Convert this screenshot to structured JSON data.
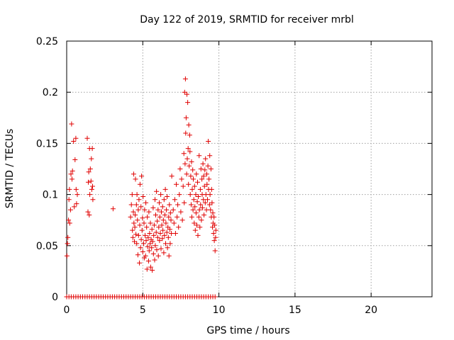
{
  "chart_data": {
    "type": "scatter",
    "title": "Day 122 of 2019, SRMTID for receiver mrbl",
    "xlabel": "GPS time / hours",
    "ylabel": "SRMTID / TECUs",
    "xlim": [
      0,
      24
    ],
    "ylim": [
      0,
      0.25
    ],
    "xticks": [
      "0",
      "5",
      "10",
      "15",
      "20"
    ],
    "xtick_values": [
      0,
      5,
      10,
      15,
      20
    ],
    "yticks": [
      "0",
      "0.05",
      "0.1",
      "0.15",
      "0.2",
      "0.25"
    ],
    "ytick_values": [
      0,
      0.05,
      0.1,
      0.15,
      0.2,
      0.25
    ],
    "grid": true,
    "legend": "none",
    "marker": "+",
    "series": [
      {
        "color": "#e00000",
        "points": [
          [
            0.02,
            0.04
          ],
          [
            0.05,
            0.052
          ],
          [
            0.08,
            0.058
          ],
          [
            0.12,
            0.075
          ],
          [
            0.15,
            0.095
          ],
          [
            0.18,
            0.105
          ],
          [
            0.2,
            0.072
          ],
          [
            0.25,
            0.085
          ],
          [
            0.28,
            0.12
          ],
          [
            0.32,
            0.169
          ],
          [
            0.35,
            0.115
          ],
          [
            0.38,
            0.123
          ],
          [
            0.45,
            0.152
          ],
          [
            0.5,
            0.088
          ],
          [
            0.55,
            0.134
          ],
          [
            0.6,
            0.155
          ],
          [
            0.62,
            0.105
          ],
          [
            0.65,
            0.091
          ],
          [
            0.7,
            0.1
          ],
          [
            1.35,
            0.155
          ],
          [
            1.4,
            0.083
          ],
          [
            1.42,
            0.112
          ],
          [
            1.45,
            0.122
          ],
          [
            1.48,
            0.08
          ],
          [
            1.5,
            0.145
          ],
          [
            1.52,
            0.1
          ],
          [
            1.55,
            0.125
          ],
          [
            1.6,
            0.113
          ],
          [
            1.62,
            0.135
          ],
          [
            1.65,
            0.105
          ],
          [
            1.68,
            0.145
          ],
          [
            1.7,
            0.108
          ],
          [
            1.72,
            0.095
          ],
          [
            3.05,
            0.086
          ],
          [
            4.2,
            0.078
          ],
          [
            4.25,
            0.09
          ],
          [
            4.3,
            0.1
          ],
          [
            4.32,
            0.065
          ],
          [
            4.35,
            0.058
          ],
          [
            4.38,
            0.083
          ],
          [
            4.4,
            0.12
          ],
          [
            4.42,
            0.072
          ],
          [
            4.45,
            0.054
          ],
          [
            4.48,
            0.068
          ],
          [
            4.5,
            0.08
          ],
          [
            4.52,
            0.115
          ],
          [
            4.55,
            0.061
          ],
          [
            4.58,
            0.09
          ],
          [
            4.6,
            0.052
          ],
          [
            4.62,
            0.1
          ],
          [
            4.65,
            0.075
          ],
          [
            4.68,
            0.041
          ],
          [
            4.7,
            0.085
          ],
          [
            4.72,
            0.06
          ],
          [
            4.75,
            0.095
          ],
          [
            4.78,
            0.033
          ],
          [
            4.8,
            0.07
          ],
          [
            4.82,
            0.11
          ],
          [
            4.85,
            0.048
          ],
          [
            4.88,
            0.088
          ],
          [
            4.9,
            0.056
          ],
          [
            4.92,
            0.118
          ],
          [
            4.95,
            0.065
          ],
          [
            4.98,
            0.077
          ],
          [
            5.0,
            0.044
          ],
          [
            5.02,
            0.098
          ],
          [
            5.05,
            0.052
          ],
          [
            5.08,
            0.072
          ],
          [
            5.1,
            0.038
          ],
          [
            5.12,
            0.085
          ],
          [
            5.15,
            0.06
          ],
          [
            5.18,
            0.04
          ],
          [
            5.2,
            0.092
          ],
          [
            5.22,
            0.055
          ],
          [
            5.25,
            0.068
          ],
          [
            5.28,
            0.027
          ],
          [
            5.3,
            0.078
          ],
          [
            5.32,
            0.049
          ],
          [
            5.35,
            0.058
          ],
          [
            5.38,
            0.035
          ],
          [
            5.4,
            0.083
          ],
          [
            5.42,
            0.045
          ],
          [
            5.45,
            0.062
          ],
          [
            5.48,
            0.052
          ],
          [
            5.5,
            0.072
          ],
          [
            5.52,
            0.029
          ],
          [
            5.55,
            0.056
          ],
          [
            5.58,
            0.048
          ],
          [
            5.6,
            0.066
          ],
          [
            5.62,
            0.026
          ],
          [
            5.65,
            0.054
          ],
          [
            5.68,
            0.087
          ],
          [
            5.7,
            0.042
          ],
          [
            5.72,
            0.06
          ],
          [
            5.75,
            0.07
          ],
          [
            5.78,
            0.036
          ],
          [
            5.8,
            0.095
          ],
          [
            5.82,
            0.05
          ],
          [
            5.85,
            0.08
          ],
          [
            5.88,
            0.063
          ],
          [
            5.9,
            0.103
          ],
          [
            5.92,
            0.046
          ],
          [
            5.95,
            0.074
          ],
          [
            5.98,
            0.058
          ],
          [
            6.0,
            0.085
          ],
          [
            6.02,
            0.04
          ],
          [
            6.05,
            0.068
          ],
          [
            6.08,
            0.092
          ],
          [
            6.1,
            0.055
          ],
          [
            6.12,
            0.078
          ],
          [
            6.15,
            0.062
          ],
          [
            6.18,
            0.1
          ],
          [
            6.2,
            0.047
          ],
          [
            6.22,
            0.083
          ],
          [
            6.25,
            0.07
          ],
          [
            6.28,
            0.057
          ],
          [
            6.3,
            0.088
          ],
          [
            6.32,
            0.065
          ],
          [
            6.35,
            0.075
          ],
          [
            6.38,
            0.043
          ],
          [
            6.4,
            0.095
          ],
          [
            6.42,
            0.06
          ],
          [
            6.45,
            0.08
          ],
          [
            6.48,
            0.105
          ],
          [
            6.5,
            0.052
          ],
          [
            6.52,
            0.072
          ],
          [
            6.55,
            0.085
          ],
          [
            6.58,
            0.063
          ],
          [
            6.6,
            0.098
          ],
          [
            6.62,
            0.048
          ],
          [
            6.65,
            0.068
          ],
          [
            6.68,
            0.058
          ],
          [
            6.7,
            0.078
          ],
          [
            6.72,
            0.04
          ],
          [
            6.75,
            0.09
          ],
          [
            6.78,
            0.066
          ],
          [
            6.8,
            0.052
          ],
          [
            6.82,
            0.082
          ],
          [
            6.85,
            0.075
          ],
          [
            6.88,
            0.062
          ],
          [
            6.9,
            0.118
          ],
          [
            7.0,
            0.085
          ],
          [
            7.05,
            0.072
          ],
          [
            7.1,
            0.095
          ],
          [
            7.15,
            0.062
          ],
          [
            7.2,
            0.11
          ],
          [
            7.25,
            0.078
          ],
          [
            7.3,
            0.09
          ],
          [
            7.35,
            0.068
          ],
          [
            7.4,
            0.1
          ],
          [
            7.45,
            0.125
          ],
          [
            7.5,
            0.083
          ],
          [
            7.55,
            0.115
          ],
          [
            7.6,
            0.075
          ],
          [
            7.65,
            0.108
          ],
          [
            7.7,
            0.14
          ],
          [
            7.72,
            0.092
          ],
          [
            7.75,
            0.2
          ],
          [
            7.78,
            0.13
          ],
          [
            7.8,
            0.213
          ],
          [
            7.82,
            0.16
          ],
          [
            7.85,
            0.175
          ],
          [
            7.88,
            0.12
          ],
          [
            7.9,
            0.198
          ],
          [
            7.92,
            0.135
          ],
          [
            7.95,
            0.19
          ],
          [
            7.98,
            0.145
          ],
          [
            8.0,
            0.11
          ],
          [
            8.02,
            0.168
          ],
          [
            8.05,
            0.128
          ],
          [
            8.08,
            0.158
          ],
          [
            8.1,
            0.142
          ],
          [
            8.12,
            0.1
          ],
          [
            8.15,
            0.118
          ],
          [
            8.18,
            0.09
          ],
          [
            8.2,
            0.132
          ],
          [
            8.22,
            0.078
          ],
          [
            8.25,
            0.105
          ],
          [
            8.28,
            0.124
          ],
          [
            8.3,
            0.085
          ],
          [
            8.32,
            0.115
          ],
          [
            8.35,
            0.095
          ],
          [
            8.38,
            0.072
          ],
          [
            8.4,
            0.108
          ],
          [
            8.42,
            0.088
          ],
          [
            8.45,
            0.065
          ],
          [
            8.48,
            0.1
          ],
          [
            8.5,
            0.082
          ],
          [
            8.52,
            0.12
          ],
          [
            8.55,
            0.07
          ],
          [
            8.58,
            0.093
          ],
          [
            8.6,
            0.112
          ],
          [
            8.62,
            0.06
          ],
          [
            8.65,
            0.098
          ],
          [
            8.68,
            0.078
          ],
          [
            8.7,
            0.138
          ],
          [
            8.72,
            0.085
          ],
          [
            8.75,
            0.068
          ],
          [
            8.78,
            0.105
          ],
          [
            8.8,
            0.09
          ],
          [
            8.82,
            0.125
          ],
          [
            8.85,
            0.075
          ],
          [
            8.88,
            0.115
          ],
          [
            8.9,
            0.1
          ],
          [
            8.92,
            0.087
          ],
          [
            8.95,
            0.13
          ],
          [
            8.98,
            0.095
          ],
          [
            9.0,
            0.118
          ],
          [
            9.02,
            0.08
          ],
          [
            9.05,
            0.108
          ],
          [
            9.08,
            0.124
          ],
          [
            9.1,
            0.092
          ],
          [
            9.12,
            0.135
          ],
          [
            9.15,
            0.1
          ],
          [
            9.18,
            0.085
          ],
          [
            9.2,
            0.12
          ],
          [
            9.22,
            0.11
          ],
          [
            9.25,
            0.095
          ],
          [
            9.28,
            0.128
          ],
          [
            9.3,
            0.152
          ],
          [
            9.32,
            0.105
          ],
          [
            9.35,
            0.115
          ],
          [
            9.38,
            0.09
          ],
          [
            9.4,
            0.138
          ],
          [
            9.42,
            0.1
          ],
          [
            9.45,
            0.085
          ],
          [
            9.48,
            0.125
          ],
          [
            9.5,
            0.078
          ],
          [
            9.52,
            0.105
          ],
          [
            9.55,
            0.092
          ],
          [
            9.58,
            0.068
          ],
          [
            9.6,
            0.082
          ],
          [
            9.62,
            0.072
          ],
          [
            9.65,
            0.062
          ],
          [
            9.68,
            0.078
          ],
          [
            9.7,
            0.055
          ],
          [
            9.72,
            0.07
          ],
          [
            9.75,
            0.045
          ],
          [
            9.78,
            0.058
          ],
          [
            9.8,
            0.065
          ]
        ],
        "zero_points_x": [
          0.0,
          0.15,
          0.3,
          0.45,
          0.6,
          0.75,
          0.9,
          1.05,
          1.2,
          1.35,
          1.5,
          1.65,
          1.8,
          1.95,
          2.1,
          2.25,
          2.4,
          2.55,
          2.7,
          2.85,
          3.0,
          3.15,
          3.3,
          3.45,
          3.6,
          3.75,
          3.9,
          4.05,
          4.2,
          4.35,
          4.5,
          4.65,
          4.8,
          4.95,
          5.1,
          5.25,
          5.4,
          5.55,
          5.7,
          5.85,
          6.0,
          6.15,
          6.3,
          6.45,
          6.6,
          6.75,
          6.9,
          7.05,
          7.2,
          7.35,
          7.5,
          7.65,
          7.8,
          7.95,
          8.1,
          8.25,
          8.4,
          8.55,
          8.7,
          8.85,
          9.0,
          9.15,
          9.3,
          9.45,
          9.6,
          9.75
        ]
      }
    ]
  }
}
